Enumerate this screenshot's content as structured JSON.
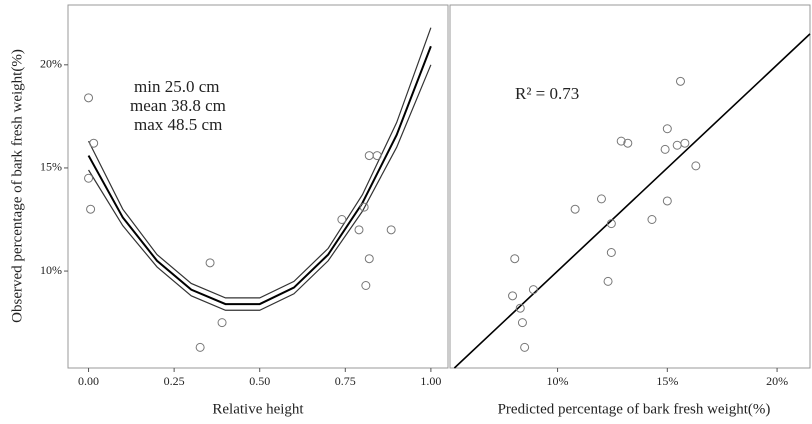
{
  "chart_data": [
    {
      "type": "scatter",
      "xlabel": "Relative height",
      "ylabel": "Observed percentage of bark fresh weight(%)",
      "annotations": [
        "min  25.0 cm",
        "mean 38.8 cm",
        "max  48.5 cm"
      ],
      "x": [
        0.0,
        0.015,
        0.0,
        0.006,
        0.355,
        0.39,
        0.326,
        0.74,
        0.805,
        0.82,
        0.843,
        0.79,
        0.82,
        0.81,
        0.884
      ],
      "values": [
        18.4,
        16.2,
        14.5,
        13.0,
        10.4,
        7.5,
        6.3,
        12.5,
        13.1,
        15.6,
        15.6,
        12.0,
        10.6,
        9.3,
        12.0
      ],
      "color": "#777777",
      "fit_x": [
        0,
        0.1,
        0.2,
        0.3,
        0.4,
        0.5,
        0.6,
        0.7,
        0.8,
        0.9,
        1.0
      ],
      "fit_lines": [
        {
          "color": "#000000",
          "values": [
            15.6,
            12.6,
            10.5,
            9.1,
            8.4,
            8.4,
            9.2,
            10.8,
            13.3,
            16.6,
            20.9
          ]
        },
        {
          "color": "#333333",
          "values": [
            16.3,
            13.0,
            10.8,
            9.4,
            8.7,
            8.7,
            9.5,
            11.1,
            13.7,
            17.2,
            21.8
          ]
        },
        {
          "color": "#333333",
          "values": [
            14.9,
            12.2,
            10.2,
            8.8,
            8.1,
            8.1,
            8.9,
            10.5,
            12.9,
            16.0,
            20.0
          ]
        }
      ],
      "xlim": [
        -0.06,
        1.05
      ],
      "xticks": [
        {
          "value": 0,
          "label": "0.00"
        },
        {
          "value": 0.25,
          "label": "0.25"
        },
        {
          "value": 0.5,
          "label": "0.50"
        },
        {
          "value": 0.75,
          "label": "0.75"
        },
        {
          "value": 1,
          "label": "1.00"
        }
      ],
      "ylim": [
        5.3,
        22.9
      ],
      "yticks": [
        {
          "value": 10,
          "label": "10%"
        },
        {
          "value": 15,
          "label": "15%"
        },
        {
          "value": 20,
          "label": "20%"
        }
      ]
    },
    {
      "type": "scatter",
      "xlabel": "Predicted percentage of bark fresh weight(%)",
      "annotations": [
        "R² = 0.73"
      ],
      "x": [
        8.05,
        7.95,
        8.3,
        8.4,
        8.5,
        8.9,
        10.8,
        12.0,
        12.45,
        12.45,
        12.3,
        12.9,
        13.2,
        14.3,
        15.0,
        15.0,
        14.9,
        15.45,
        15.8,
        15.6,
        16.3
      ],
      "values": [
        10.6,
        8.8,
        8.2,
        7.5,
        6.3,
        9.1,
        13.0,
        13.5,
        12.3,
        10.9,
        9.5,
        16.3,
        16.2,
        12.5,
        13.4,
        16.9,
        15.9,
        16.1,
        16.2,
        19.2,
        15.1
      ],
      "color": "#777777",
      "xlim": [
        5.1,
        21.5
      ],
      "xticks": [
        {
          "value": 10,
          "label": "10%"
        },
        {
          "value": 15,
          "label": "15%"
        },
        {
          "value": 20,
          "label": "20%"
        }
      ],
      "ylim": [
        5.3,
        22.9
      ]
    }
  ]
}
